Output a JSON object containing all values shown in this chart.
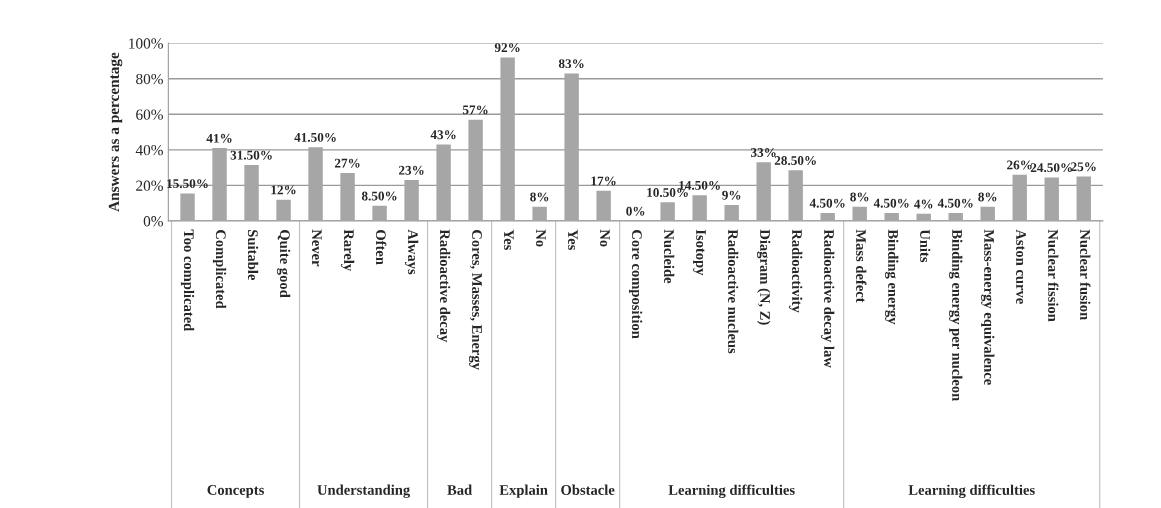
{
  "chart_data": {
    "type": "bar",
    "ylabel": "Answers as a percentage",
    "categories": [
      "Too complicated",
      "Complicated",
      "Suitable",
      "Quite good",
      "Never",
      "Rarely",
      "Often",
      "Always",
      "Radioactive decay",
      "Cores, Masses, Energy",
      "Yes",
      "No",
      "Yes",
      "No",
      "Core composition",
      "Nucleide",
      "Isotopy",
      "Radioactive nucleus",
      "Diagram (N, Z)",
      "Radioactivity",
      "Radioactive decay law",
      "Mass defect",
      "Binding energy",
      "Units",
      "Binding energy per nucleon",
      "Mass-energy equivalence",
      "Aston curve",
      "Nuclear fission",
      "Nuclear fusion"
    ],
    "values": [
      15.5,
      41,
      31.5,
      12,
      41.5,
      27,
      8.5,
      23,
      43,
      57,
      92,
      8,
      83,
      17,
      0,
      10.5,
      14.5,
      9,
      33,
      28.5,
      4.5,
      8,
      4.5,
      4,
      4.5,
      8,
      26,
      24.5,
      25
    ],
    "value_labels": [
      "15.50%",
      "41%",
      "31.50%",
      "12%",
      "41.50%",
      "27%",
      "8.50%",
      "23%",
      "43%",
      "57%",
      "92%",
      "8%",
      "83%",
      "17%",
      "0%",
      "10.50%",
      "14.50%",
      "9%",
      "33%",
      "28.50%",
      "4.50%",
      "8%",
      "4.50%",
      "4%",
      "4.50%",
      "8%",
      "26%",
      "24.50%",
      "25%"
    ],
    "color": "#a6a6a6",
    "ylim": [
      0,
      100
    ],
    "yticks": [
      {
        "value": 0,
        "label": "0%"
      },
      {
        "value": 20,
        "label": "20%"
      },
      {
        "value": 40,
        "label": "40%"
      },
      {
        "value": 60,
        "label": "60%"
      },
      {
        "value": 80,
        "label": "80%"
      },
      {
        "value": 100,
        "label": "100%"
      }
    ],
    "grid": "y",
    "annotations": [
      "Concepts",
      "Understanding",
      "Bad",
      "Explain",
      "Obstacle",
      "Learning difficulties",
      "Learning difficulties"
    ]
  }
}
